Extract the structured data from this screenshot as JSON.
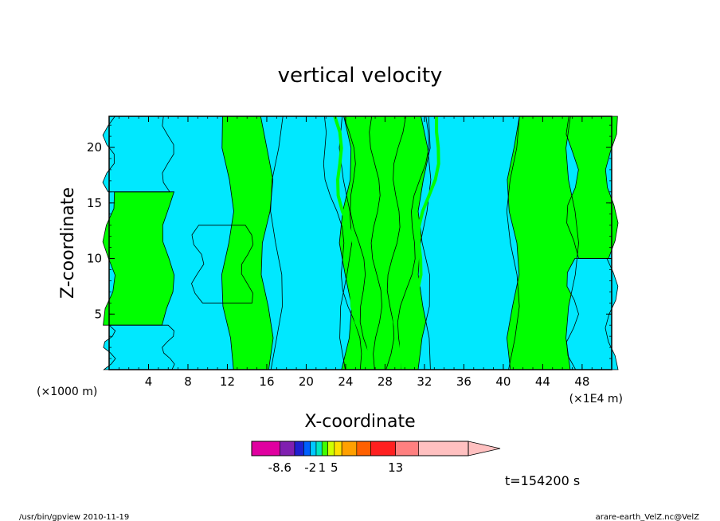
{
  "chart_data": {
    "type": "heatmap",
    "title": "vertical velocity",
    "xlabel": "X-coordinate",
    "ylabel": "Z-coordinate",
    "x_unit_left": "(×1000 m)",
    "x_unit_right": "(×1E4 m)",
    "x_ticks": [
      "4",
      "8",
      "12",
      "16",
      "20",
      "24",
      "28",
      "32",
      "36",
      "40",
      "44",
      "48"
    ],
    "y_ticks": [
      "5",
      "10",
      "15",
      "20"
    ],
    "xlim": [
      0,
      51
    ],
    "ylim": [
      0,
      22.8
    ],
    "grid": false,
    "field_colors": {
      "weak_negative": "#00e8ff",
      "weak_positive": "#00ff00",
      "contour_line": "#000000"
    },
    "bands": [
      {
        "region": "weak_negative",
        "x_range": [
          0,
          6
        ],
        "z_range": [
          0,
          4
        ]
      },
      {
        "region": "weak_positive",
        "x_range": [
          0,
          6
        ],
        "z_range": [
          4,
          16
        ]
      },
      {
        "region": "weak_negative",
        "x_range": [
          0,
          6
        ],
        "z_range": [
          16,
          22.8
        ]
      },
      {
        "region": "weak_negative",
        "x_range": [
          9,
          14
        ],
        "z_range": [
          6,
          13
        ]
      },
      {
        "region": "weak_positive",
        "x_range": [
          12,
          17
        ],
        "z_range": [
          0,
          22.8
        ]
      },
      {
        "region": "weak_negative",
        "x_range": [
          16,
          24
        ],
        "z_range": [
          0,
          22.8
        ]
      },
      {
        "region": "weak_positive",
        "x_range": [
          24,
          32
        ],
        "z_range": [
          0,
          22.8
        ]
      },
      {
        "region": "weak_negative",
        "x_range": [
          32,
          41
        ],
        "z_range": [
          0,
          22.8
        ]
      },
      {
        "region": "weak_positive",
        "x_range": [
          41,
          47
        ],
        "z_range": [
          0,
          22.8
        ]
      },
      {
        "region": "weak_negative",
        "x_range": [
          47,
          51
        ],
        "z_range": [
          0,
          10
        ]
      },
      {
        "region": "weak_positive",
        "x_range": [
          47,
          51
        ],
        "z_range": [
          10,
          22.8
        ]
      }
    ],
    "colorbar": {
      "labels": [
        "-8.6",
        "-2",
        "1",
        "5",
        "13"
      ],
      "colors": [
        "#e000a0",
        "#8020b0",
        "#2020d0",
        "#0060ff",
        "#00c8ff",
        "#00e8c0",
        "#40ff00",
        "#d0ff00",
        "#ffe000",
        "#ffa000",
        "#ff6000",
        "#ff2020",
        "#ff8080",
        "#ffc0c0"
      ],
      "extend": "max"
    },
    "time_label": "t=154200 s"
  },
  "footer": {
    "left": "/usr/bin/gpview   2010-11-19",
    "right": "arare-earth_VelZ.nc@VelZ"
  }
}
